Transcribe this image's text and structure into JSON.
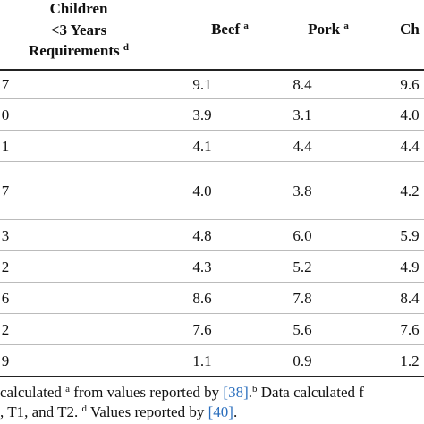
{
  "table": {
    "header": [
      {
        "lines": [
          "Children",
          "<3 Years",
          "Requirements"
        ],
        "sup": "d"
      },
      {
        "lines": [
          "Beef"
        ],
        "sup": "a"
      },
      {
        "lines": [
          "Pork"
        ],
        "sup": "a"
      },
      {
        "lines": [
          "Ch"
        ],
        "sup": null
      }
    ],
    "rows": [
      [
        "7",
        "9.1",
        "8.4",
        "9.6"
      ],
      [
        "0",
        "3.9",
        "3.1",
        "4.0"
      ],
      [
        "1",
        "4.1",
        "4.4",
        "4.4"
      ],
      [
        "7",
        "4.0",
        "3.8",
        "4.2"
      ],
      [
        "3",
        "4.8",
        "6.0",
        "5.9"
      ],
      [
        "2",
        "4.3",
        "5.2",
        "4.9"
      ],
      [
        "6",
        "8.6",
        "7.8",
        "8.4"
      ],
      [
        "2",
        "7.6",
        "5.6",
        "7.6"
      ],
      [
        "9",
        "1.1",
        "0.9",
        "1.2"
      ]
    ]
  },
  "footnote": [
    [
      {
        "text": "calculated "
      },
      {
        "text": "a",
        "sup": true
      },
      {
        "text": " from values reported by "
      },
      {
        "text": "[38]",
        "link": true
      },
      {
        "text": "."
      },
      {
        "text": "b",
        "sup": true
      },
      {
        "text": " Data calculated f"
      }
    ],
    [
      {
        "text": ", T1, and T2. "
      },
      {
        "text": "d",
        "sup": true
      },
      {
        "text": " Values reported by "
      },
      {
        "text": "[40]",
        "link": true
      },
      {
        "text": "."
      }
    ]
  ]
}
